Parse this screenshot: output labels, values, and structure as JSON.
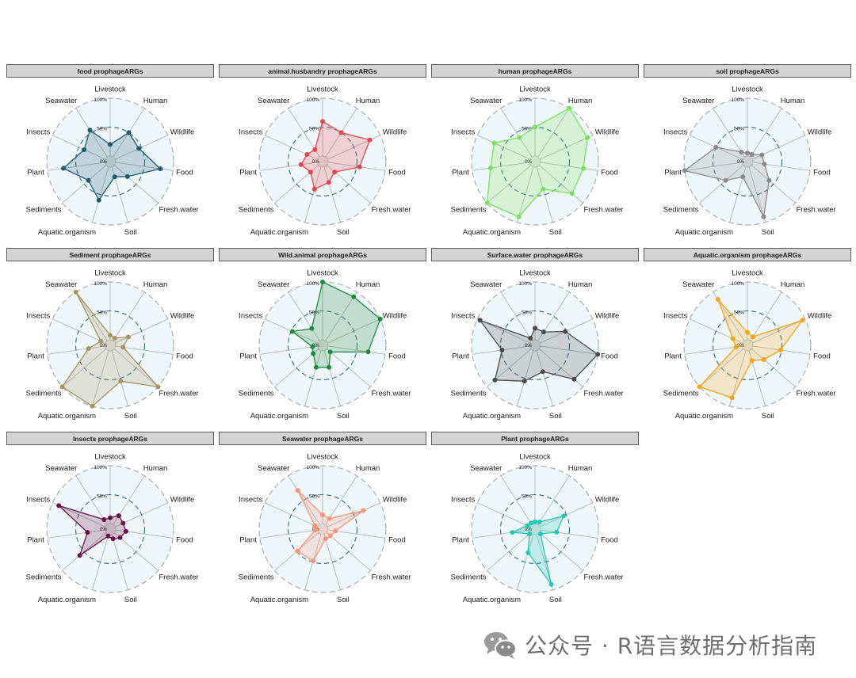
{
  "axes": [
    "Livestock",
    "Human",
    "Wildlife",
    "Food",
    "Fresh.water",
    "Soil",
    "Aquatic.organism",
    "Sediments",
    "Plant",
    "Insects",
    "Seawater"
  ],
  "ring_labels": [
    "100%",
    "50%",
    "0%"
  ],
  "watermark": {
    "text": "公众号 · R语言数据分析指南",
    "icon": "wechat-icon"
  },
  "chart_data": [
    {
      "type": "radar",
      "title": "food prophageARGs",
      "color": "#1a5c6e",
      "values": [
        0.2,
        0.5,
        0.45,
        0.78,
        0.3,
        0.18,
        0.6,
        0.4,
        0.72,
        0.4,
        0.55
      ]
    },
    {
      "type": "radar",
      "title": "animal.husbandry prophageARGs",
      "color": "#e8434d",
      "values": [
        0.6,
        0.5,
        0.8,
        0.55,
        0.18,
        0.28,
        0.4,
        0.18,
        0.28,
        0.2,
        0.15
      ]
    },
    {
      "type": "radar",
      "title": "human prophageARGs",
      "color": "#78e35a",
      "values": [
        0.5,
        1.0,
        0.9,
        0.75,
        0.75,
        0.4,
        0.9,
        1.0,
        0.68,
        0.68,
        0.4
      ]
    },
    {
      "type": "radar",
      "title": "soil prophageARGs",
      "color": "#8a8a8a",
      "values": [
        0.05,
        0.05,
        0.18,
        0.2,
        0.4,
        0.9,
        0.18,
        0.4,
        1.0,
        0.5,
        0.1
      ]
    },
    {
      "type": "radar",
      "title": "Sediment prophageARGs",
      "color": "#a39560",
      "values": [
        0.08,
        0.05,
        0.25,
        0.13,
        1.0,
        0.55,
        1.0,
        1.0,
        0.28,
        0.08,
        1.0
      ]
    },
    {
      "type": "radar",
      "title": "Wild.animal prophageARGs",
      "color": "#1f8a3c",
      "values": [
        1.0,
        0.9,
        1.0,
        0.7,
        0.08,
        0.3,
        0.3,
        0.12,
        0.08,
        0.48,
        0.25
      ]
    },
    {
      "type": "radar",
      "title": "Surface.water prophageARGs",
      "color": "#4a4a4a",
      "values": [
        0.2,
        0.18,
        0.48,
        1.0,
        0.8,
        0.38,
        0.55,
        0.82,
        0.48,
        0.95,
        0.05
      ]
    },
    {
      "type": "radar",
      "title": "Aquatic.organism prophageARGs",
      "color": "#f5a516",
      "values": [
        0.13,
        0.08,
        0.95,
        0.48,
        0.28,
        0.18,
        0.85,
        1.0,
        0.1,
        0.18,
        0.85
      ]
    },
    {
      "type": "radar",
      "title": "Insects prophageARGs",
      "color": "#6b0f48",
      "values": [
        0.1,
        0.18,
        0.15,
        0.18,
        0.13,
        0.08,
        0.03,
        0.6,
        0.3,
        0.88,
        0.1
      ]
    },
    {
      "type": "radar",
      "title": "Seawater prophageARGs",
      "color": "#f79478",
      "values": [
        0.15,
        0.12,
        0.68,
        0.13,
        0.08,
        0.08,
        0.48,
        0.48,
        0.03,
        0.05,
        0.7
      ]
    },
    {
      "type": "radar",
      "title": "Plant prophageARGs",
      "color": "#22c7b5",
      "values": [
        0.03,
        0.05,
        0.45,
        0.28,
        0.03,
        0.9,
        0.33,
        0.03,
        0.3,
        0.05,
        0.03
      ]
    }
  ]
}
